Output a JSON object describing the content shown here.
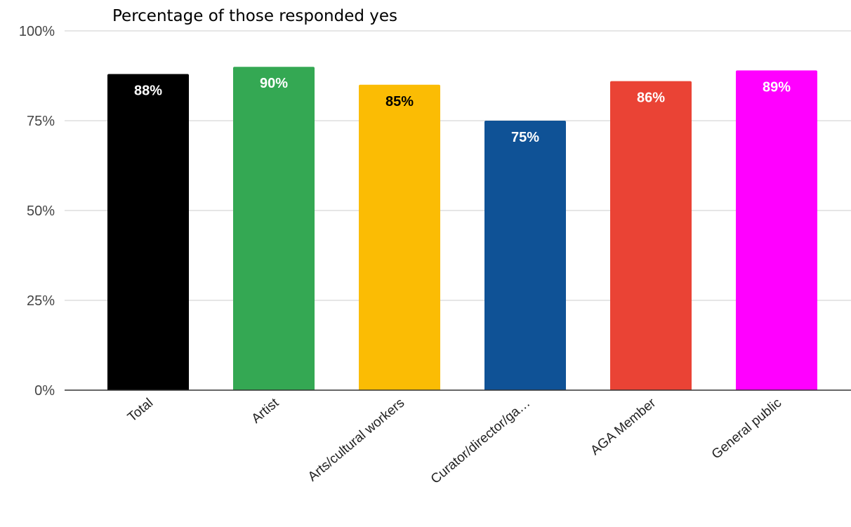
{
  "chart_data": {
    "type": "bar",
    "title": "Percentage of those responded yes",
    "xlabel": "",
    "ylabel": "",
    "categories": [
      "Total",
      "Artist",
      "Arts/cultural workers",
      "Curator/director/ga…",
      "AGA Member",
      "General public"
    ],
    "values": [
      88,
      90,
      85,
      75,
      86,
      89
    ],
    "data_labels": [
      "88%",
      "90%",
      "85%",
      "75%",
      "86%",
      "89%"
    ],
    "colors": [
      "#000000",
      "#34a853",
      "#fbbc04",
      "#0f5296",
      "#ea4335",
      "#ff00ff"
    ],
    "label_colors": [
      "#ffffff",
      "#ffffff",
      "#000000",
      "#ffffff",
      "#ffffff",
      "#ffffff"
    ],
    "ylim": [
      0,
      100
    ],
    "yticks": [
      0,
      25,
      50,
      75,
      100
    ],
    "ytick_labels": [
      "0%",
      "25%",
      "50%",
      "75%",
      "100%"
    ],
    "grid": true,
    "legend": "none"
  }
}
